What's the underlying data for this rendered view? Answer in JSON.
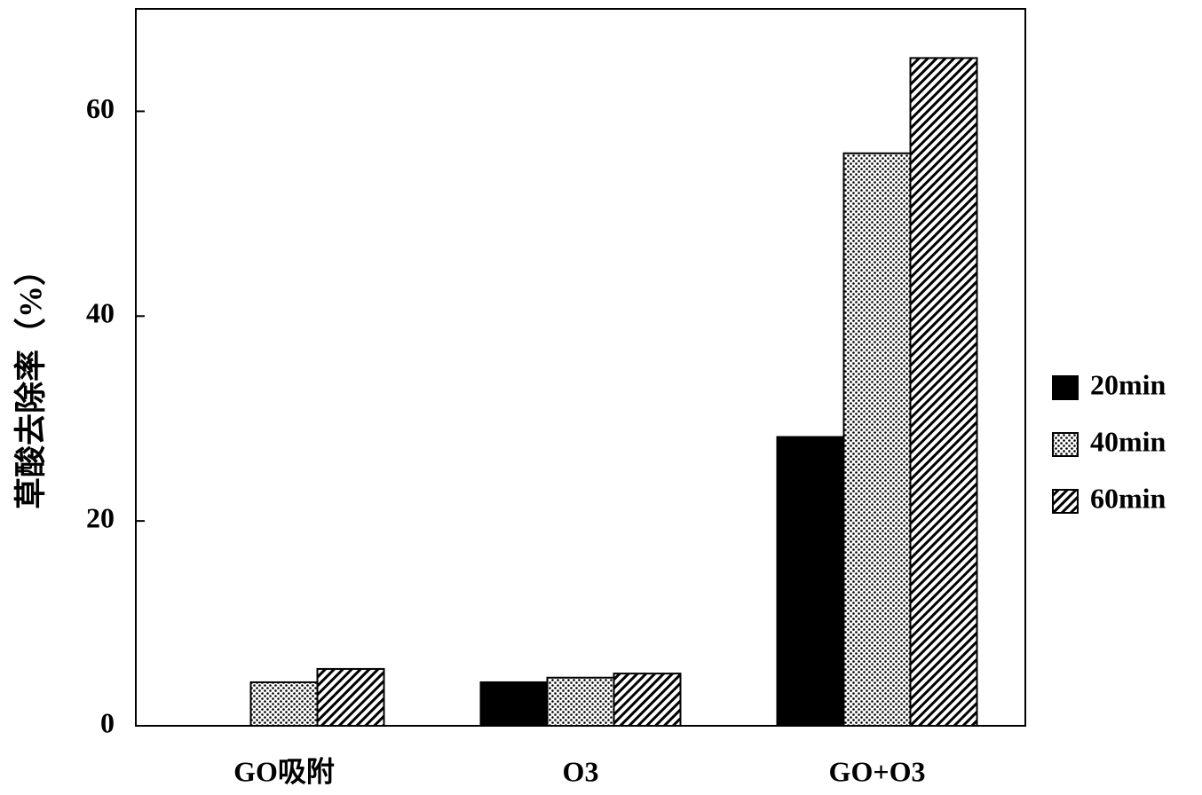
{
  "chart_data": {
    "type": "bar",
    "y_label": "草酸去除率（%）",
    "categories": [
      "GO吸附",
      "O3",
      "GO+O3"
    ],
    "series": [
      {
        "name": "20min",
        "color": "#000000",
        "pattern": "solid",
        "values": [
          0,
          4.25,
          28.2
        ]
      },
      {
        "name": "40min",
        "color": "#000000",
        "pattern": "dots",
        "values": [
          4.25,
          4.7,
          55.9
        ]
      },
      {
        "name": "60min",
        "color": "#000000",
        "pattern": "hatch",
        "values": [
          5.55,
          5.1,
          65.2
        ]
      }
    ],
    "ylim": [
      0,
      70
    ],
    "yticks": [
      0,
      20,
      40,
      60
    ],
    "legend": "right"
  }
}
